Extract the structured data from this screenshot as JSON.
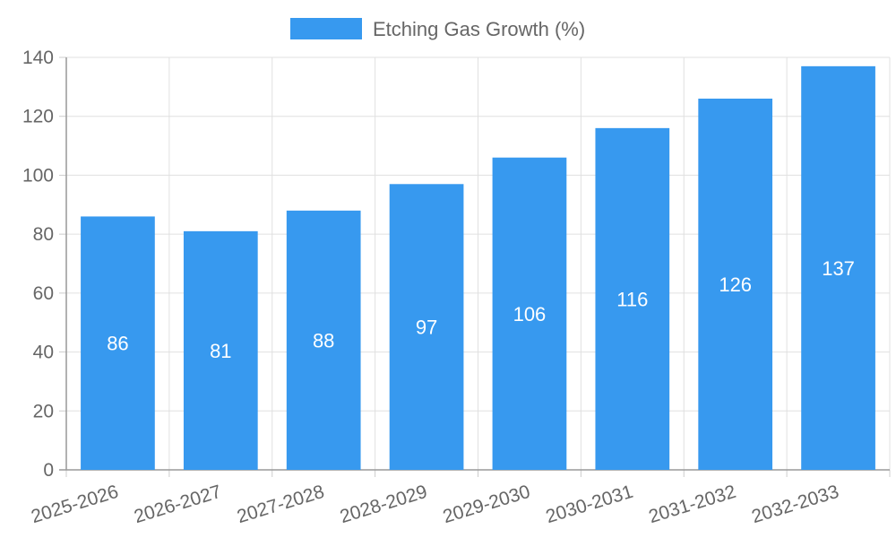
{
  "chart_data": {
    "type": "bar",
    "categories": [
      "2025-2026",
      "2026-2027",
      "2027-2028",
      "2028-2029",
      "2029-2030",
      "2030-2031",
      "2031-2032",
      "2032-2033"
    ],
    "series": [
      {
        "name": "Etching Gas Growth (%)",
        "values": [
          86,
          81,
          88,
          97,
          106,
          116,
          126,
          137
        ],
        "color": "#3799ef"
      }
    ],
    "ylim": [
      0,
      140
    ],
    "yticks": [
      0,
      20,
      40,
      60,
      80,
      100,
      120,
      140
    ],
    "grid": true,
    "legend_position": "top-center",
    "data_labels": true
  }
}
